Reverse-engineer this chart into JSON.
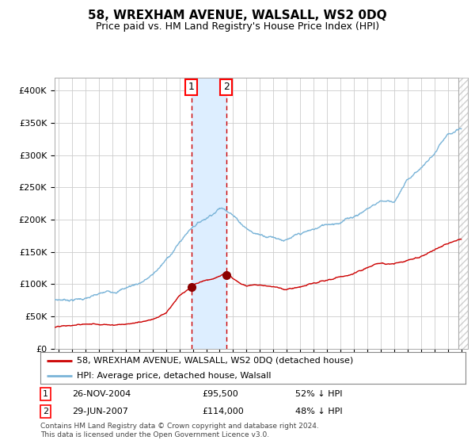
{
  "title": "58, WREXHAM AVENUE, WALSALL, WS2 0DQ",
  "subtitle": "Price paid vs. HM Land Registry's House Price Index (HPI)",
  "legend_line1": "58, WREXHAM AVENUE, WALSALL, WS2 0DQ (detached house)",
  "legend_line2": "HPI: Average price, detached house, Walsall",
  "sale1_date": "26-NOV-2004",
  "sale1_price": 95500,
  "sale1_label": "£95,500",
  "sale1_pct": "52% ↓ HPI",
  "sale2_date": "29-JUN-2007",
  "sale2_price": 114000,
  "sale2_label": "£114,000",
  "sale2_pct": "48% ↓ HPI",
  "footnote": "Contains HM Land Registry data © Crown copyright and database right 2024.\nThis data is licensed under the Open Government Licence v3.0.",
  "hpi_color": "#7ab4d8",
  "price_color": "#cc0000",
  "marker_color": "#8b0000",
  "vspan_color": "#ddeeff",
  "vline_color": "#cc0000",
  "grid_color": "#cccccc",
  "background_color": "#ffffff",
  "ylim": [
    0,
    420000
  ],
  "xlim_start": 1994.7,
  "xlim_end": 2025.5,
  "sale1_x": 2004.9,
  "sale2_x": 2007.5,
  "sale1_y": 95500,
  "sale2_y": 114000
}
